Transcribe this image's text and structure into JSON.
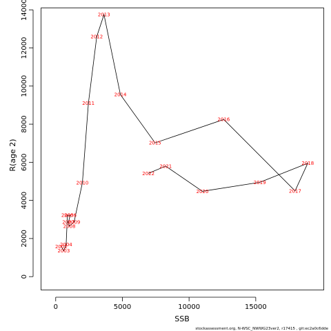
{
  "chart_data": {
    "type": "line",
    "xlabel": "SSB",
    "ylabel": "R(age 2)",
    "xlim": [
      -1100,
      20100
    ],
    "ylim": [
      -700,
      14100
    ],
    "x_ticks": [
      0,
      5000,
      10000,
      15000
    ],
    "y_ticks": [
      0,
      2000,
      4000,
      6000,
      8000,
      10000,
      12000,
      14000
    ],
    "grid": false,
    "footer": "stockassessment.org, N-WSC_NWWG23ver2, r17415 , git:ec2a0c6dde",
    "points": [
      {
        "label": "2002",
        "x": 420,
        "y": 1580
      },
      {
        "label": "2003",
        "x": 600,
        "y": 1360
      },
      {
        "label": "2004",
        "x": 780,
        "y": 1680
      },
      {
        "label": "2005",
        "x": 880,
        "y": 3220
      },
      {
        "label": "2006",
        "x": 1100,
        "y": 3220
      },
      {
        "label": "2007",
        "x": 950,
        "y": 2860
      },
      {
        "label": "2008",
        "x": 1020,
        "y": 2650
      },
      {
        "label": "2009",
        "x": 1380,
        "y": 2870
      },
      {
        "label": "2010",
        "x": 2000,
        "y": 4930
      },
      {
        "label": "2011",
        "x": 2450,
        "y": 9100
      },
      {
        "label": "2012",
        "x": 3080,
        "y": 12600
      },
      {
        "label": "2013",
        "x": 3620,
        "y": 13750
      },
      {
        "label": "2014",
        "x": 4850,
        "y": 9550
      },
      {
        "label": "2015",
        "x": 7450,
        "y": 7020
      },
      {
        "label": "2016",
        "x": 12600,
        "y": 8250
      },
      {
        "label": "2017",
        "x": 17950,
        "y": 4500
      },
      {
        "label": "2018",
        "x": 18900,
        "y": 5950
      },
      {
        "label": "2019",
        "x": 15300,
        "y": 4950
      },
      {
        "label": "2020",
        "x": 11000,
        "y": 4480
      },
      {
        "label": "2021",
        "x": 8250,
        "y": 5800
      },
      {
        "label": "2022",
        "x": 6950,
        "y": 5420
      }
    ]
  }
}
